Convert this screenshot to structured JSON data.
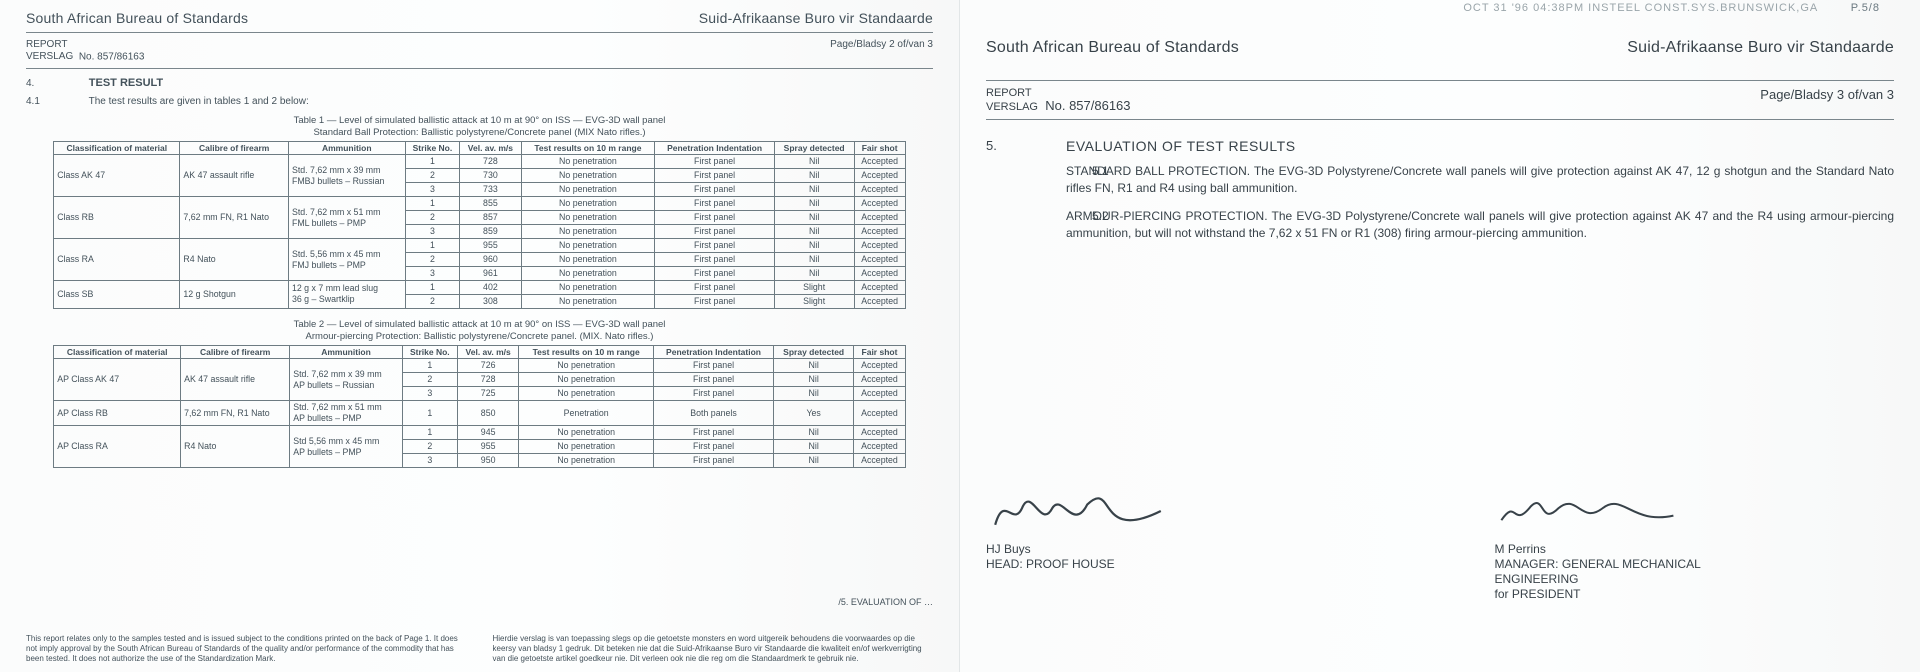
{
  "left": {
    "org_en": "South African Bureau of Standards",
    "org_af": "Suid-Afrikaanse Buro vir Standaarde",
    "report_label": "REPORT\nVERSLAG",
    "report_no_label": "No.",
    "report_no": "857/86163",
    "page_marker": "Page/Bladsy  2 of/van 3",
    "section_no": "4.",
    "section_title": "TEST RESULT",
    "subsection_no": "4.1",
    "subsection_text": "The test results are given in tables 1 and 2 below:",
    "table1": {
      "caption_a": "Table 1 — Level of simulated ballistic attack at 10 m at 90° on ISS — EVG-3D wall panel",
      "caption_b": "Standard Ball Protection: Ballistic polystyrene/Concrete panel (MIX Nato rifles.)",
      "headers": [
        "Classification of material",
        "Calibre of firearm",
        "Ammunition",
        "Strike No.",
        "Vel. av. m/s",
        "Test results on 10 m range",
        "Penetration Indentation",
        "Spray detected",
        "Fair shot"
      ],
      "rows": [
        {
          "cls": "Class AK 47",
          "cal": "AK 47 assault rifle",
          "ammo": [
            "Std. 7,62 mm x 39 mm",
            "FMBJ bullets – Russian"
          ],
          "strike": [
            "1",
            "2",
            "3"
          ],
          "vel": [
            "728",
            "730",
            "733"
          ],
          "res": [
            "No penetration",
            "No penetration",
            "No penetration"
          ],
          "pen": [
            "First panel",
            "First panel",
            "First panel"
          ],
          "spr": [
            "Nil",
            "Nil",
            "Nil"
          ],
          "fair": [
            "Accepted",
            "Accepted",
            "Accepted"
          ]
        },
        {
          "cls": "Class RB",
          "cal": "7,62 mm FN, R1 Nato",
          "ammo": [
            "Std. 7,62 mm x 51 mm",
            "FML bullets – PMP"
          ],
          "strike": [
            "1",
            "2",
            "3"
          ],
          "vel": [
            "855",
            "857",
            "859"
          ],
          "res": [
            "No penetration",
            "No penetration",
            "No penetration"
          ],
          "pen": [
            "First panel",
            "First panel",
            "First panel"
          ],
          "spr": [
            "Nil",
            "Nil",
            "Nil"
          ],
          "fair": [
            "Accepted",
            "Accepted",
            "Accepted"
          ]
        },
        {
          "cls": "Class RA",
          "cal": "R4 Nato",
          "ammo": [
            "Std. 5,56 mm x 45 mm",
            "FMJ bullets – PMP"
          ],
          "strike": [
            "1",
            "2",
            "3"
          ],
          "vel": [
            "955",
            "960",
            "961"
          ],
          "res": [
            "No penetration",
            "No penetration",
            "No penetration"
          ],
          "pen": [
            "First panel",
            "First panel",
            "First panel"
          ],
          "spr": [
            "Nil",
            "Nil",
            "Nil"
          ],
          "fair": [
            "Accepted",
            "Accepted",
            "Accepted"
          ]
        },
        {
          "cls": "Class SB",
          "cal": "12 g Shotgun",
          "ammo": [
            "12 g x 7 mm lead slug",
            "36 g – Swartklip"
          ],
          "strike": [
            "1",
            "2"
          ],
          "vel": [
            "402",
            "308"
          ],
          "res": [
            "No penetration",
            "No penetration"
          ],
          "pen": [
            "First panel",
            "First panel"
          ],
          "spr": [
            "Slight",
            "Slight"
          ],
          "fair": [
            "Accepted",
            "Accepted"
          ]
        }
      ]
    },
    "table2": {
      "caption_a": "Table 2 — Level of simulated ballistic attack at 10 m at 90° on ISS — EVG-3D wall panel",
      "caption_b": "Armour-piercing Protection: Ballistic polystyrene/Concrete panel. (MIX. Nato rifles.)",
      "headers": [
        "Classification of material",
        "Calibre of firearm",
        "Ammunition",
        "Strike No.",
        "Vel. av. m/s",
        "Test results on 10 m range",
        "Penetration Indentation",
        "Spray detected",
        "Fair shot"
      ],
      "rows": [
        {
          "cls": "AP Class AK 47",
          "cal": "AK 47 assault rifle",
          "ammo": [
            "Std. 7,62 mm x 39 mm",
            "AP bullets – Russian"
          ],
          "strike": [
            "1",
            "2",
            "3"
          ],
          "vel": [
            "726",
            "728",
            "725"
          ],
          "res": [
            "No penetration",
            "No penetration",
            "No penetration"
          ],
          "pen": [
            "First panel",
            "First panel",
            "First panel"
          ],
          "spr": [
            "Nil",
            "Nil",
            "Nil"
          ],
          "fair": [
            "Accepted",
            "Accepted",
            "Accepted"
          ]
        },
        {
          "cls": "AP Class RB",
          "cal": "7,62 mm FN, R1 Nato",
          "ammo": [
            "Std. 7,62 mm x 51 mm",
            "AP bullets – PMP"
          ],
          "strike": [
            "1"
          ],
          "vel": [
            "850"
          ],
          "res": [
            "Penetration"
          ],
          "pen": [
            "Both panels"
          ],
          "spr": [
            "Yes"
          ],
          "fair": [
            "Accepted"
          ]
        },
        {
          "cls": "AP Class RA",
          "cal": "R4 Nato",
          "ammo": [
            "Std 5,56 mm x 45 mm",
            "AP bullets – PMP"
          ],
          "strike": [
            "1",
            "2",
            "3"
          ],
          "vel": [
            "945",
            "955",
            "950"
          ],
          "res": [
            "No penetration",
            "No penetration",
            "No penetration"
          ],
          "pen": [
            "First panel",
            "First panel",
            "First panel"
          ],
          "spr": [
            "Nil",
            "Nil",
            "Nil"
          ],
          "fair": [
            "Accepted",
            "Accepted",
            "Accepted"
          ]
        }
      ]
    },
    "continuation": "/5. EVALUATION OF …",
    "footer_en": "This report relates only to the samples tested and is issued subject to the conditions printed on the back of Page 1. It does not imply approval by the South African Bureau of Standards of the quality and/or performance of the commodity that has been tested. It does not authorize the use of the Standardization Mark.",
    "footer_af": "Hierdie verslag is van toepassing slegs op die getoetste monsters en word uitgereik behoudens die voorwaardes op die keersy van bladsy 1 gedruk. Dit beteken nie dat die Suid-Afrikaanse Buro vir Standaarde die kwaliteit en/of werkverrigting van die getoetste artikel goedkeur nie. Dit verleen ook nie die reg om die Standaardmerk te gebruik nie."
  },
  "right": {
    "fax_header": "OCT 31 '96  04:38PM INSTEEL CONST.SYS.BRUNSWICK,GA",
    "fax_page": "P.5/8",
    "org_en": "South African Bureau of Standards",
    "org_af": "Suid-Afrikaanse Buro vir Standaarde",
    "report_label": "REPORT\nVERSLAG",
    "report_no_label": "No.",
    "report_no": "857/86163",
    "page_marker": "Page/Bladsy  3 of/van 3",
    "s5_no": "5.",
    "s5_title": "EVALUATION OF TEST RESULTS",
    "s51_no": "5.1",
    "s51_text": "STANDARD BALL PROTECTION. The EVG-3D Polystyrene/Concrete wall panels will give protection against AK 47, 12 g shotgun and the Standard Nato rifles FN, R1 and R4 using ball ammunition.",
    "s52_no": "5.2",
    "s52_text": "ARMOUR-PIERCING PROTECTION. The EVG-3D Polystyrene/Concrete wall panels will give protection against AK 47 and the R4 using armour-piercing ammunition, but will not withstand the 7,62 x 51 FN or R1 (308) firing armour-piercing ammunition.",
    "sign1_name": "HJ Buys",
    "sign1_title": "HEAD: PROOF HOUSE",
    "sign2_name": "M Perrins",
    "sign2_title_a": "MANAGER: GENERAL MECHANICAL",
    "sign2_title_b": "ENGINEERING",
    "sign2_title_c": "for PRESIDENT"
  }
}
